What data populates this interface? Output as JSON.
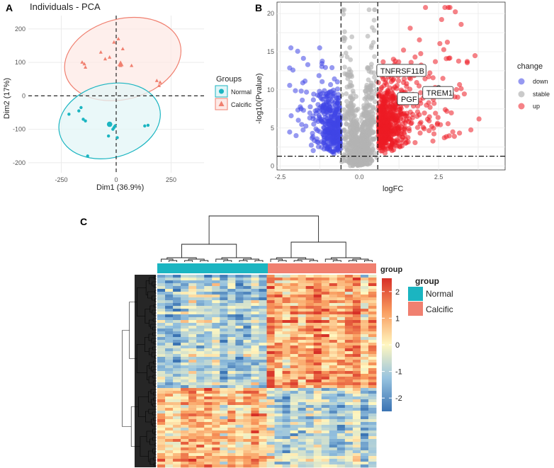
{
  "panels": {
    "a": {
      "letter": "A"
    },
    "b": {
      "letter": "B"
    },
    "c": {
      "letter": "C"
    }
  },
  "colors": {
    "normal": "#1bb5c1",
    "calcific": "#f08070",
    "down": "#3f46e6",
    "stable": "#b4b4b4",
    "up": "#ec1c24"
  },
  "chart_data": [
    {
      "id": "pca",
      "type": "scatter",
      "title": "Individuals - PCA",
      "xlabel": "Dim1 (36.9%)",
      "ylabel": "Dim2 (17%)",
      "xlim": [
        -400,
        400
      ],
      "ylim": [
        -230,
        240
      ],
      "xticks": [
        -250,
        0,
        250
      ],
      "yticks": [
        -200,
        -100,
        0,
        100,
        200
      ],
      "legend": {
        "title": "Groups",
        "position": "right"
      },
      "series": [
        {
          "name": "Normal",
          "shape": "circle",
          "x": [
            -215,
            -170,
            -160,
            -150,
            -140,
            -130,
            -35,
            -25,
            -15,
            -10,
            -5,
            5,
            130,
            145
          ],
          "y": [
            -55,
            -45,
            -35,
            -70,
            -75,
            -180,
            -120,
            -85,
            -100,
            -95,
            -90,
            -125,
            -90,
            -88
          ],
          "centroid": [
            -30,
            -85
          ],
          "ellipse": {
            "cx": -30,
            "cy": -75,
            "rx": 235,
            "ry": 110,
            "rotate": 15
          }
        },
        {
          "name": "Calcific",
          "shape": "triangle",
          "x": [
            -155,
            -145,
            -140,
            -70,
            -50,
            -30,
            -10,
            10,
            20,
            30,
            70,
            185,
            195,
            200
          ],
          "y": [
            100,
            95,
            85,
            130,
            110,
            115,
            160,
            170,
            90,
            140,
            90,
            45,
            30,
            40
          ],
          "centroid": [
            20,
            95
          ],
          "ellipse": {
            "cx": 30,
            "cy": 110,
            "rx": 270,
            "ry": 120,
            "rotate": 15
          }
        }
      ]
    },
    {
      "id": "volcano",
      "type": "scatter",
      "xlabel": "logFC",
      "ylabel": "-log10(Pvalue)",
      "xlim": [
        -2.6,
        4.6
      ],
      "ylim": [
        -0.5,
        21.5
      ],
      "xticks": [
        -2.5,
        0.0,
        2.5
      ],
      "yticks": [
        0,
        5,
        10,
        15,
        20
      ],
      "thresholds": {
        "logfc": [
          -0.58,
          0.58
        ],
        "pvalue": 1.3
      },
      "legend": {
        "title": "change",
        "position": "right",
        "entries": [
          "down",
          "stable",
          "up"
        ]
      },
      "labels": [
        {
          "text": "TNFRSF11B",
          "x": 0.55,
          "y": 12.5
        },
        {
          "text": "PGF",
          "x": 1.2,
          "y": 8.8
        },
        {
          "text": "TREM1",
          "x": 2.0,
          "y": 9.6
        }
      ],
      "highlight": [
        {
          "x": 2.5,
          "y": 10.2
        }
      ]
    },
    {
      "id": "heatmap",
      "type": "heatmap",
      "annotation_title": "group",
      "groups": [
        "Normal",
        "Calcific"
      ],
      "samples_per_group": 14,
      "colorbar": {
        "title": "group",
        "ticks": [
          2,
          1,
          0,
          -1,
          -2
        ],
        "range": [
          -2.5,
          2.5
        ]
      }
    }
  ]
}
